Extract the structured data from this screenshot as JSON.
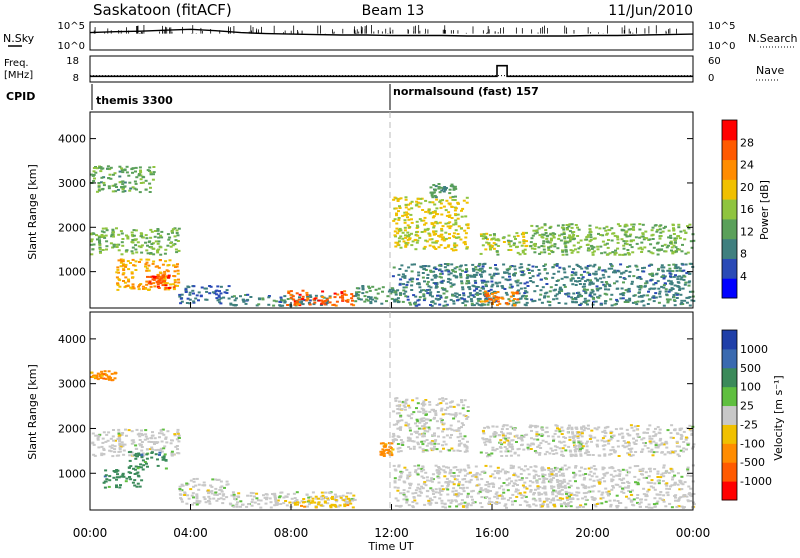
{
  "header": {
    "station": "Saskatoon (fitACF)",
    "beam": "Beam 13",
    "date": "11/Jun/2010"
  },
  "sky_panel": {
    "left_label": "N.Sky",
    "left_ticks": [
      "10^5",
      "10^0"
    ],
    "right_ticks": [
      "10^5",
      "10^0"
    ],
    "right_label": "N.Search"
  },
  "freq_panel": {
    "left_label_line1": "Freq.",
    "left_label_line2": "[MHz]",
    "left_ticks": [
      "18",
      "8"
    ],
    "right_ticks": [
      "60",
      "0"
    ],
    "right_label": "Nave"
  },
  "cpid": {
    "label": "CPID",
    "programs": [
      {
        "name": "themis 3300",
        "start_hour": 0
      },
      {
        "name": "normalsound (fast) 157",
        "start_hour": 12
      }
    ]
  },
  "power_panel": {
    "ylabel": "Slant Range [km]",
    "yticks": [
      "4000",
      "3000",
      "2000",
      "1000"
    ],
    "colorbar_label": "Power [dB]",
    "colorbar_ticks": [
      "28",
      "24",
      "20",
      "16",
      "12",
      "8",
      "4"
    ],
    "colorbar_colors": [
      "#0000ff",
      "#2a4ab6",
      "#3f7f7f",
      "#5aa05a",
      "#8fc43f",
      "#f0c000",
      "#ff8c00",
      "#ff5a00",
      "#ff0000"
    ]
  },
  "velocity_panel": {
    "ylabel": "Slant Range [km]",
    "yticks": [
      "4000",
      "3000",
      "2000",
      "1000"
    ],
    "colorbar_label": "Velocity [m s⁻¹]",
    "colorbar_ticks": [
      "1000",
      "500",
      "100",
      "25",
      "-25",
      "-100",
      "-500",
      "-1000"
    ],
    "colorbar_colors": [
      "#1f3fa8",
      "#3a6ab0",
      "#3b8a5a",
      "#5fbf3f",
      "#c8c8c8",
      "#f0c000",
      "#ff8c00",
      "#ff5a00",
      "#ff0000"
    ]
  },
  "x_axis": {
    "xlabel": "Time UT",
    "ticks": [
      "00:00",
      "04:00",
      "08:00",
      "12:00",
      "16:00",
      "20:00",
      "00:00"
    ]
  },
  "chart_data": [
    {
      "type": "line",
      "panel": "N.Sky / N.Search",
      "x_unit": "hours UT",
      "x": [
        0,
        1,
        2,
        3,
        4,
        5,
        6,
        7,
        8,
        9,
        10,
        11,
        12,
        13,
        14,
        15,
        16,
        17,
        18,
        19,
        20,
        21,
        22,
        23,
        24
      ],
      "series": [
        {
          "values": [
            3.2,
            3.4,
            3.5,
            3.7,
            3.9,
            3.6,
            3.2,
            3.0,
            2.9,
            2.8,
            2.7,
            2.7,
            2.6,
            2.6,
            2.6,
            2.5,
            2.5,
            2.5,
            2.5,
            2.5,
            2.6,
            2.6,
            2.7,
            2.8,
            2.9
          ]
        }
      ],
      "ylim": [
        0,
        5
      ]
    },
    {
      "type": "line",
      "panel": "Freq / Nave",
      "x_unit": "hours UT",
      "series": [
        {
          "name": "Freq.",
          "x": [
            0,
            16.2,
            16.2,
            16.6,
            16.6,
            24
          ],
          "values": [
            9.7,
            9.7,
            14.5,
            14.5,
            9.7,
            9.7
          ]
        },
        {
          "name": "Nave",
          "x": [
            0,
            24
          ],
          "values": [
            12,
            12
          ]
        }
      ],
      "ylim_left": [
        8,
        18
      ],
      "ylim_right": [
        0,
        60
      ]
    },
    {
      "type": "heatmap",
      "panel": "Power",
      "x_unit": "hours UT",
      "y_unit": "km",
      "xlim": [
        0,
        24
      ],
      "ylim": [
        180,
        4600
      ],
      "zlim": [
        0,
        31
      ],
      "blobs": [
        {
          "x": [
            0.0,
            3.5
          ],
          "y": [
            1400,
            2000
          ],
          "value": 14
        },
        {
          "x": [
            1.0,
            3.5
          ],
          "y": [
            600,
            1300
          ],
          "value": 22
        },
        {
          "x": [
            2.2,
            3.3
          ],
          "y": [
            650,
            950
          ],
          "value": 28
        },
        {
          "x": [
            0.0,
            2.5
          ],
          "y": [
            2800,
            3400
          ],
          "value": 12
        },
        {
          "x": [
            3.5,
            5.5
          ],
          "y": [
            300,
            700
          ],
          "value": 6
        },
        {
          "x": [
            5.5,
            9.5
          ],
          "y": [
            250,
            500
          ],
          "value": 8
        },
        {
          "x": [
            7.8,
            10.5
          ],
          "y": [
            250,
            600
          ],
          "value": 27
        },
        {
          "x": [
            10.5,
            12.5
          ],
          "y": [
            300,
            700
          ],
          "value": 10
        },
        {
          "x": [
            12.0,
            15.0
          ],
          "y": [
            1500,
            2700
          ],
          "value": 18
        },
        {
          "x": [
            13.5,
            14.5
          ],
          "y": [
            2700,
            3000
          ],
          "value": 10
        },
        {
          "x": [
            15.5,
            17.5
          ],
          "y": [
            1400,
            1900
          ],
          "value": 16
        },
        {
          "x": [
            17.5,
            24.0
          ],
          "y": [
            1400,
            2100
          ],
          "value": 14
        },
        {
          "x": [
            12.0,
            24.0
          ],
          "y": [
            250,
            1200
          ],
          "value": 8
        },
        {
          "x": [
            15.5,
            17.0
          ],
          "y": [
            250,
            600
          ],
          "value": 24
        }
      ]
    },
    {
      "type": "heatmap",
      "panel": "Velocity",
      "x_unit": "hours UT",
      "y_unit": "km",
      "xlim": [
        0,
        24
      ],
      "ylim": [
        180,
        4600
      ],
      "zlim": [
        -1000,
        1000
      ],
      "blobs": [
        {
          "x": [
            0.0,
            3.5
          ],
          "y": [
            1400,
            2000
          ],
          "value": 0
        },
        {
          "x": [
            0.5,
            2.0
          ],
          "y": [
            700,
            1100
          ],
          "value": 120
        },
        {
          "x": [
            1.5,
            3.0
          ],
          "y": [
            1100,
            1500
          ],
          "value": 300
        },
        {
          "x": [
            0.0,
            1.0
          ],
          "y": [
            3100,
            3300
          ],
          "value": -300
        },
        {
          "x": [
            3.5,
            5.5
          ],
          "y": [
            300,
            900
          ],
          "value": 0
        },
        {
          "x": [
            5.5,
            10.5
          ],
          "y": [
            250,
            600
          ],
          "value": 0
        },
        {
          "x": [
            8.0,
            10.5
          ],
          "y": [
            250,
            500
          ],
          "value": -50
        },
        {
          "x": [
            11.5,
            12.0
          ],
          "y": [
            1400,
            1700
          ],
          "value": -300
        },
        {
          "x": [
            12.0,
            15.0
          ],
          "y": [
            1500,
            2700
          ],
          "value": 0
        },
        {
          "x": [
            15.5,
            24.0
          ],
          "y": [
            1400,
            2100
          ],
          "value": 0
        },
        {
          "x": [
            12.0,
            24.0
          ],
          "y": [
            250,
            1200
          ],
          "value": 0
        }
      ]
    }
  ]
}
